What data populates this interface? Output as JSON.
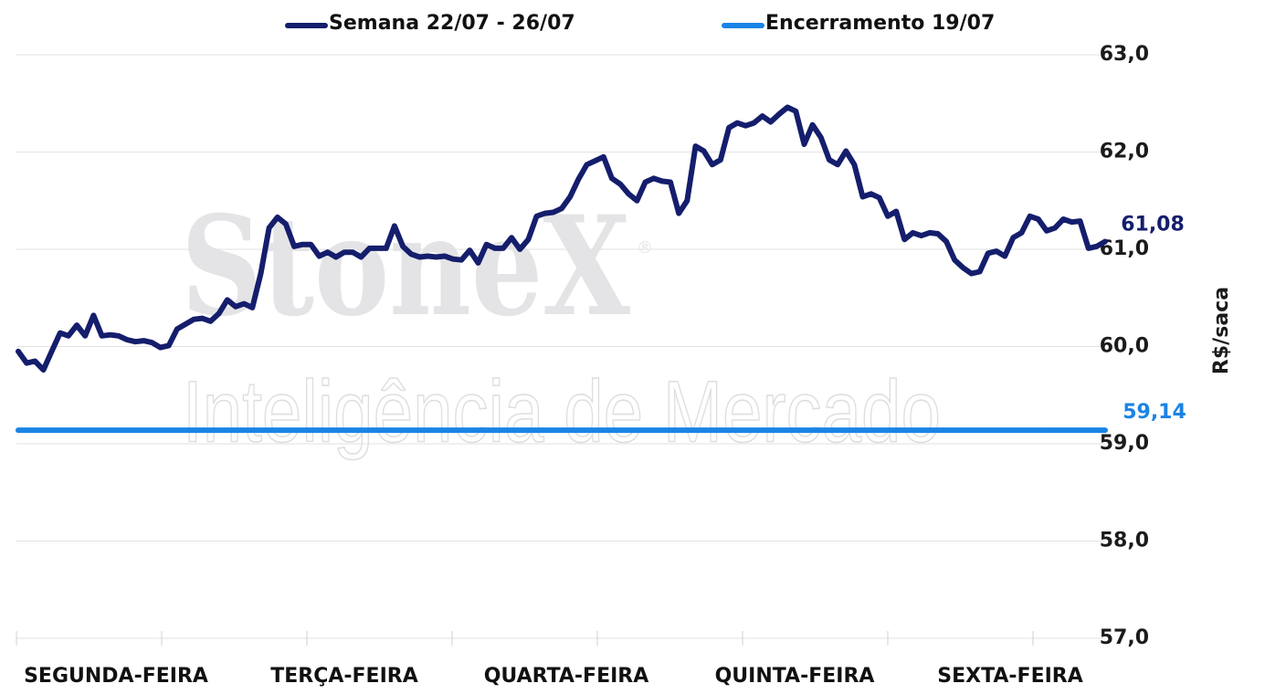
{
  "chart_data": {
    "type": "line",
    "watermark": [
      "StoneX",
      "®",
      "Inteligência de Mercado"
    ],
    "y_label": "R$/saca",
    "day_labels": [
      "SEGUNDA-FEIRA",
      "TERÇA-FEIRA",
      "QUARTA-FEIRA",
      "QUINTA-FEIRA",
      "SEXTA-FEIRA"
    ],
    "ylim": [
      57,
      63
    ],
    "yticks": [
      {
        "value": 57,
        "label": "57,0"
      },
      {
        "value": 58,
        "label": "58,0"
      },
      {
        "value": 59,
        "label": "59,0"
      },
      {
        "value": 60,
        "label": "60,0"
      },
      {
        "value": 61,
        "label": "61,0"
      },
      {
        "value": 62,
        "label": "62,0"
      },
      {
        "value": 63,
        "label": "63,0"
      }
    ],
    "grid": true,
    "series": [
      {
        "name": "Semana 22/07 - 26/07",
        "color": "#141e6c",
        "end_label": "61,08",
        "values": [
          59.95,
          59.83,
          59.85,
          59.76,
          59.95,
          60.14,
          60.11,
          60.22,
          60.11,
          60.32,
          60.11,
          60.12,
          60.11,
          60.07,
          60.05,
          60.06,
          60.04,
          59.99,
          60.01,
          60.18,
          60.23,
          60.28,
          60.29,
          60.26,
          60.34,
          60.48,
          60.41,
          60.44,
          60.4,
          60.75,
          61.22,
          61.33,
          61.26,
          61.03,
          61.05,
          61.05,
          60.93,
          60.97,
          60.92,
          60.97,
          60.97,
          60.92,
          61.01,
          61.01,
          61.01,
          61.24,
          61.03,
          60.95,
          60.92,
          60.93,
          60.92,
          60.93,
          60.9,
          60.89,
          60.99,
          60.86,
          61.05,
          61.01,
          61.01,
          61.12,
          61.0,
          61.1,
          61.34,
          61.37,
          61.38,
          61.42,
          61.54,
          61.72,
          61.87,
          61.91,
          61.95,
          61.73,
          61.67,
          61.57,
          61.5,
          61.69,
          61.73,
          61.7,
          61.69,
          61.37,
          61.5,
          62.06,
          62.01,
          61.87,
          61.92,
          62.25,
          62.3,
          62.27,
          62.3,
          62.37,
          62.31,
          62.39,
          62.46,
          62.42,
          62.08,
          62.28,
          62.15,
          61.92,
          61.87,
          62.01,
          61.87,
          61.54,
          61.57,
          61.53,
          61.34,
          61.39,
          61.1,
          61.17,
          61.14,
          61.17,
          61.16,
          61.08,
          60.89,
          60.81,
          60.75,
          60.77,
          60.96,
          60.98,
          60.93,
          61.12,
          61.17,
          61.34,
          61.31,
          61.19,
          61.22,
          61.31,
          61.28,
          61.29,
          61.01,
          61.03,
          61.08
        ]
      },
      {
        "name": "Encerramento 19/07",
        "color": "#1a84e6",
        "value": 59.14,
        "value_label": "59,14"
      }
    ]
  }
}
